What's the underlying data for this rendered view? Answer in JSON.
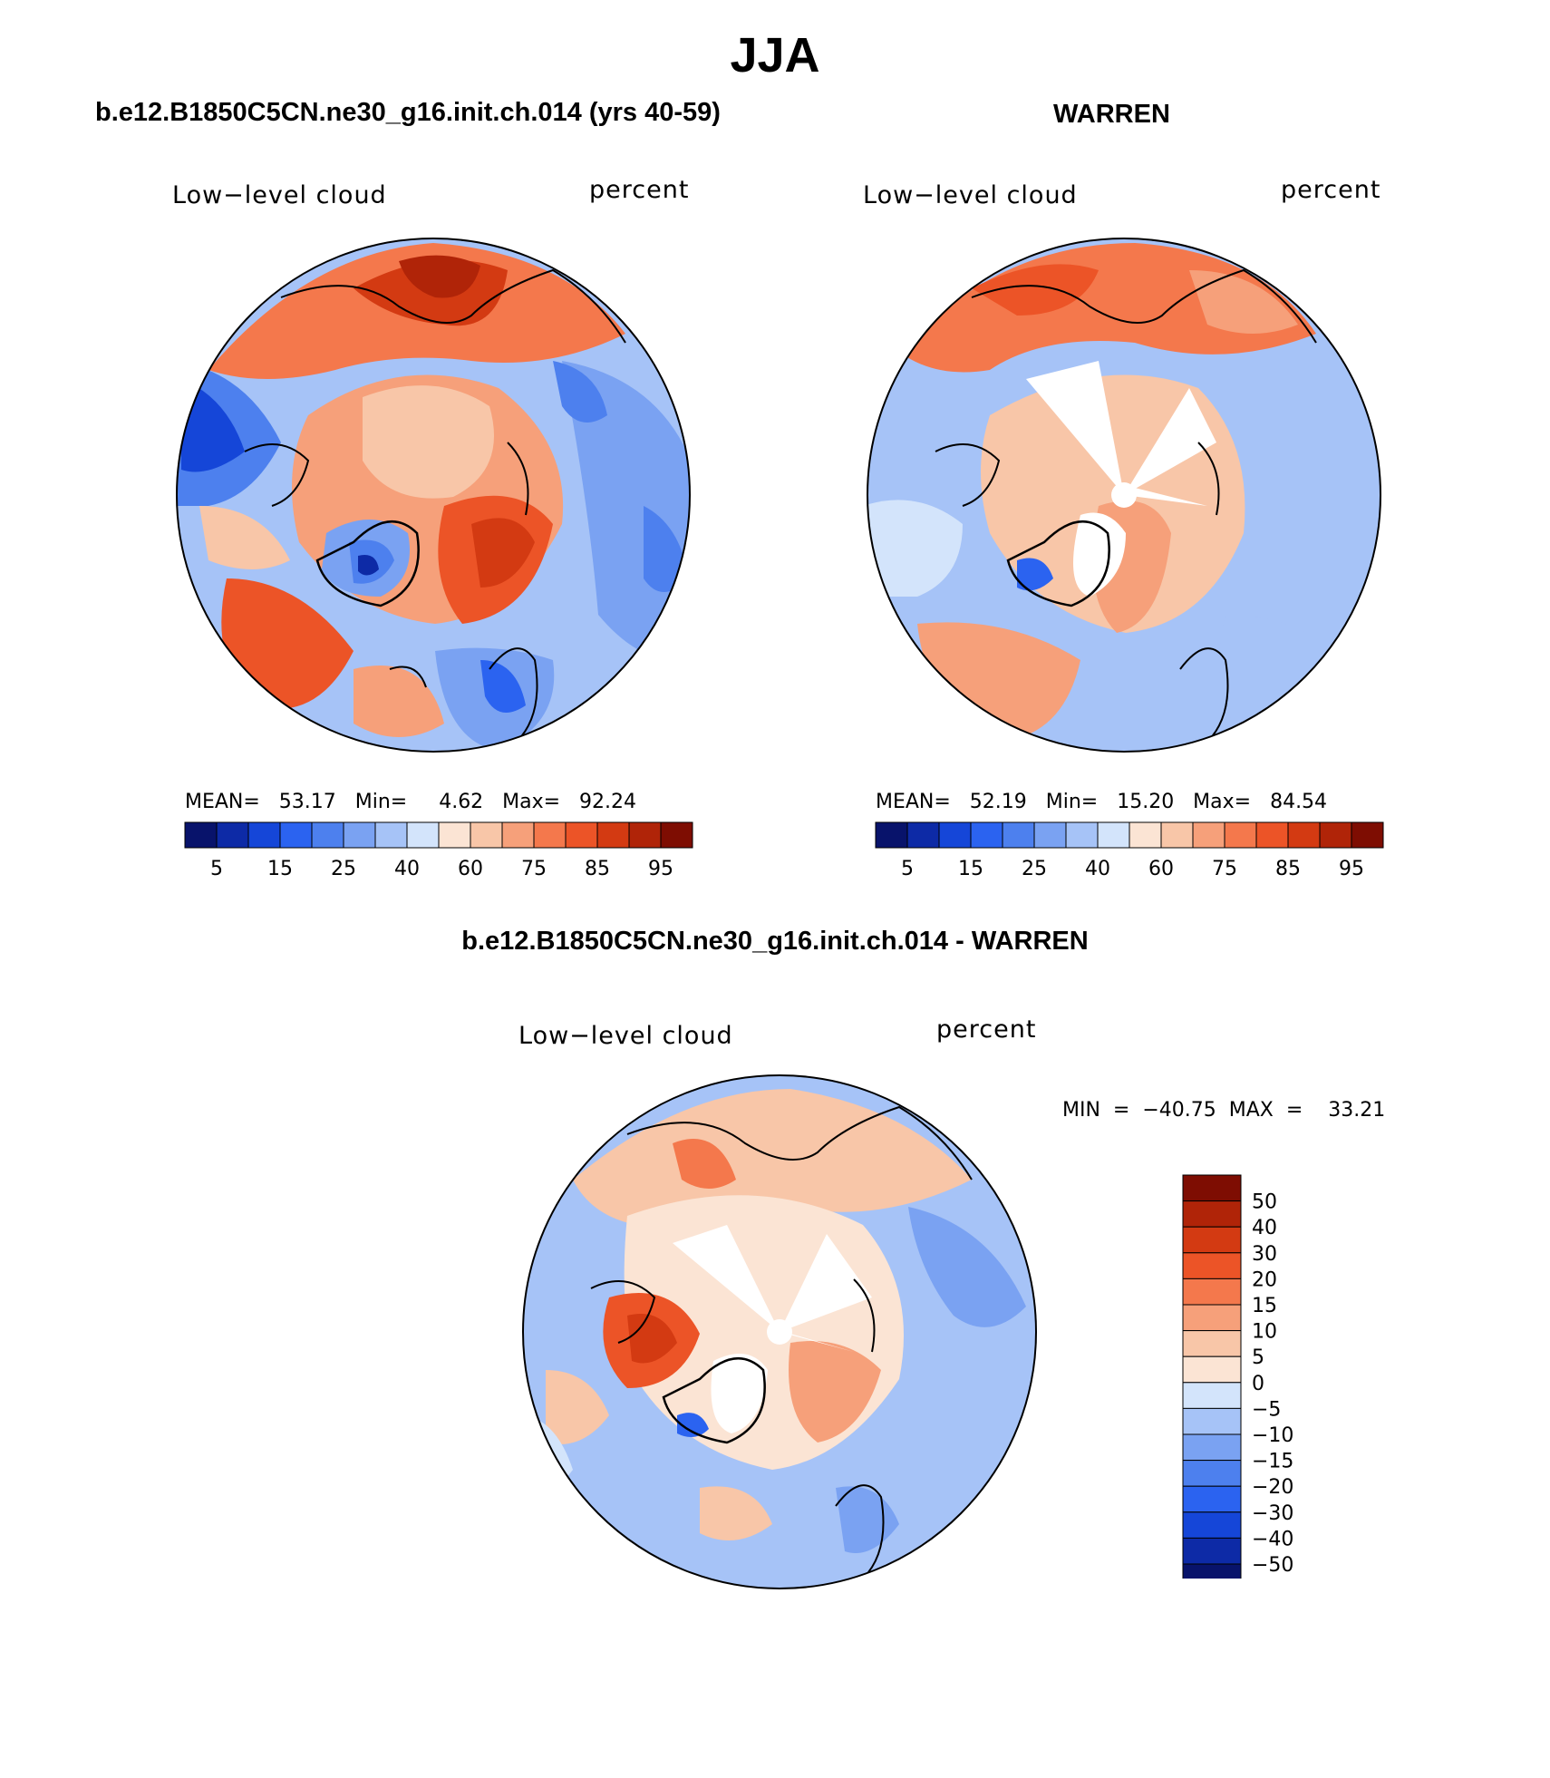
{
  "figure": {
    "title": "JJA",
    "panel_left_heading": "b.e12.B1850C5CN.ne30_g16.init.ch.014 (yrs 40-59)",
    "panel_right_heading": "WARREN",
    "panel_diff_heading": "b.e12.B1850C5CN.ne30_g16.init.ch.014 - WARREN"
  },
  "panels": {
    "left": {
      "variable": "Low−level cloud",
      "units": "percent",
      "stats_text": "MEAN=   53.17   Min=     4.62   Max=   92.24"
    },
    "right": {
      "variable": "Low−level cloud",
      "units": "percent",
      "stats_text": "MEAN=   52.19   Min=   15.20   Max=   84.54"
    },
    "diff": {
      "variable": "Low−level cloud",
      "units": "percent",
      "stats_text": "MIN  =  −40.75  MAX  =    33.21"
    }
  },
  "colorbar_abs": {
    "colors": [
      "#08136b",
      "#0d2aa6",
      "#1546d8",
      "#2b63f0",
      "#4d80ee",
      "#7aa2f2",
      "#a6c3f7",
      "#d3e4fb",
      "#fbe4d4",
      "#f8c6a8",
      "#f6a07a",
      "#f4784c",
      "#ec5427",
      "#d33a12",
      "#b02408",
      "#7e0d02"
    ],
    "labels": [
      "5",
      "15",
      "25",
      "40",
      "60",
      "75",
      "85",
      "95"
    ]
  },
  "colorbar_diff": {
    "colors": [
      "#7e0d02",
      "#b02408",
      "#d33a12",
      "#ec5427",
      "#f4784c",
      "#f6a07a",
      "#f8c6a8",
      "#fbe4d4",
      "#d3e4fb",
      "#a6c3f7",
      "#7aa2f2",
      "#4d80ee",
      "#2b63f0",
      "#1546d8",
      "#0d2aa6",
      "#08136b"
    ],
    "labels": [
      "50",
      "40",
      "30",
      "20",
      "15",
      "10",
      "5",
      "0",
      "−5",
      "−10",
      "−15",
      "−20",
      "−30",
      "−40",
      "−50"
    ]
  }
}
